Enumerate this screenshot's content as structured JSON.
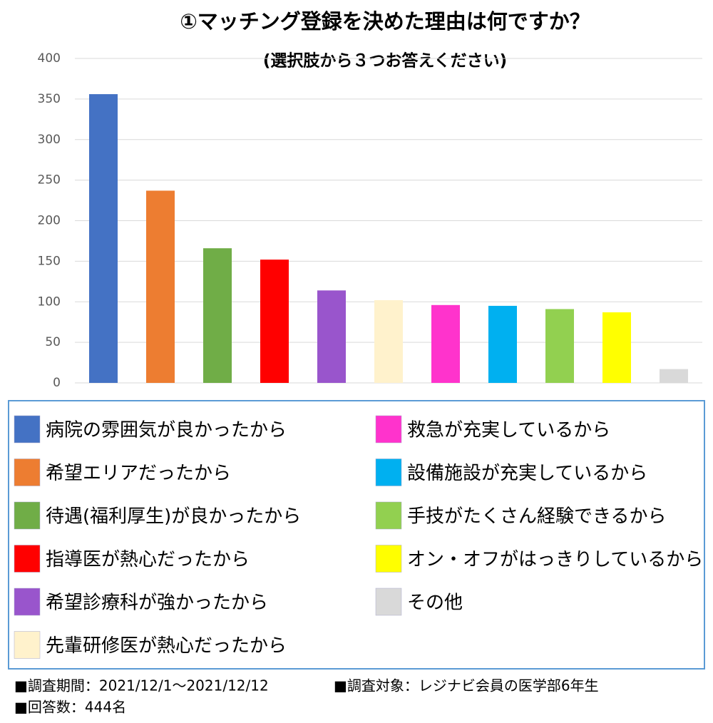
{
  "chart_data": {
    "type": "bar",
    "title": "①マッチング登録を決めた理由は何ですか？",
    "subtitle": "(選択肢から３つお答えください)",
    "categories": [
      "病院の雰囲気が良かったから",
      "希望エリアだったから",
      "待遇(福利厚生)が良かったから",
      "指導医が熱心だったから",
      "希望診療科が強かったから",
      "先輩研修医が熱心だったから",
      "救急が充実しているから",
      "設備施設が充実しているから",
      "手技がたくさん経験できるから",
      "オン・オフがはっきりしているから",
      "その他"
    ],
    "values": [
      356,
      237,
      166,
      152,
      114,
      102,
      96,
      95,
      91,
      87,
      17
    ],
    "colors": [
      "#4472c4",
      "#ed7d31",
      "#70ad47",
      "#ff0000",
      "#9955cc",
      "#fff2cc",
      "#ff33cc",
      "#00b0f0",
      "#92d050",
      "#ffff00",
      "#d9d9d9"
    ],
    "ylim": [
      0,
      400
    ],
    "yticks": [
      0,
      50,
      100,
      150,
      200,
      250,
      300,
      350,
      400
    ],
    "grid": true
  },
  "footer": [
    "■調査期間：2021/12/1～2021/12/12",
    "■調査対象：レジナビ会員の医学部6年生",
    "■回答数：444名"
  ]
}
